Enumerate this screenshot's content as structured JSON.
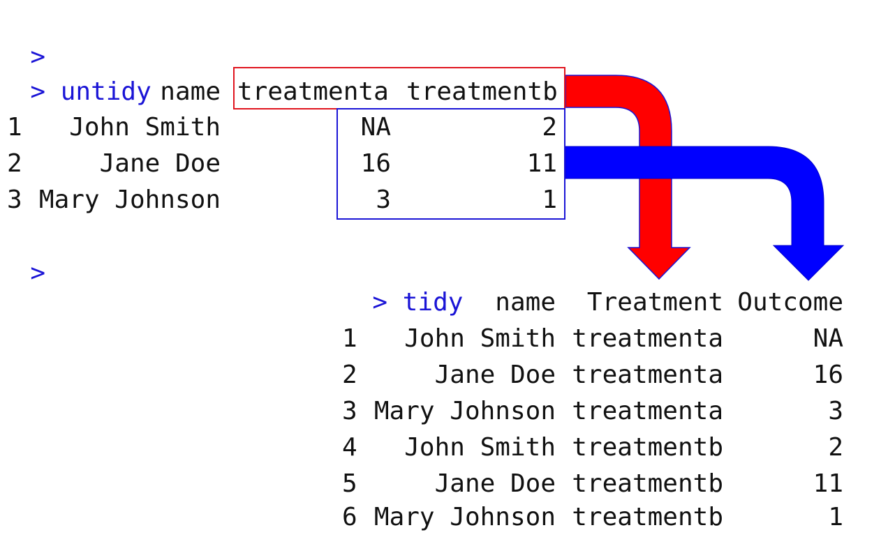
{
  "console": {
    "prompt_char": ">",
    "untidy_cmd": "untidy",
    "tidy_cmd": "tidy"
  },
  "untidy": {
    "columns": [
      "",
      "name",
      "treatmenta",
      "treatmentb"
    ],
    "rows": [
      {
        "idx": "1",
        "name": "John Smith",
        "treatmenta": "NA",
        "treatmentb": "2"
      },
      {
        "idx": "2",
        "name": "Jane Doe",
        "treatmenta": "16",
        "treatmentb": "11"
      },
      {
        "idx": "3",
        "name": "Mary Johnson",
        "treatmenta": "3",
        "treatmentb": "1"
      }
    ]
  },
  "tidy": {
    "columns": [
      "",
      "name",
      "Treatment",
      "Outcome"
    ],
    "rows": [
      {
        "idx": "1",
        "name": "John Smith",
        "treatment": "treatmenta",
        "outcome": "NA"
      },
      {
        "idx": "2",
        "name": "Jane Doe",
        "treatment": "treatmenta",
        "outcome": "16"
      },
      {
        "idx": "3",
        "name": "Mary Johnson",
        "treatment": "treatmenta",
        "outcome": "3"
      },
      {
        "idx": "4",
        "name": "John Smith",
        "treatment": "treatmentb",
        "outcome": "2"
      },
      {
        "idx": "5",
        "name": "Jane Doe",
        "treatment": "treatmentb",
        "outcome": "11"
      },
      {
        "idx": "6",
        "name": "Mary Johnson",
        "treatment": "treatmentb",
        "outcome": "1"
      }
    ]
  },
  "colors": {
    "prompt": "#1a14d6",
    "header_box": "#e0141e",
    "values_box": "#1a14d6",
    "red_arrow": "#ff0000",
    "blue_arrow": "#0000ff"
  }
}
